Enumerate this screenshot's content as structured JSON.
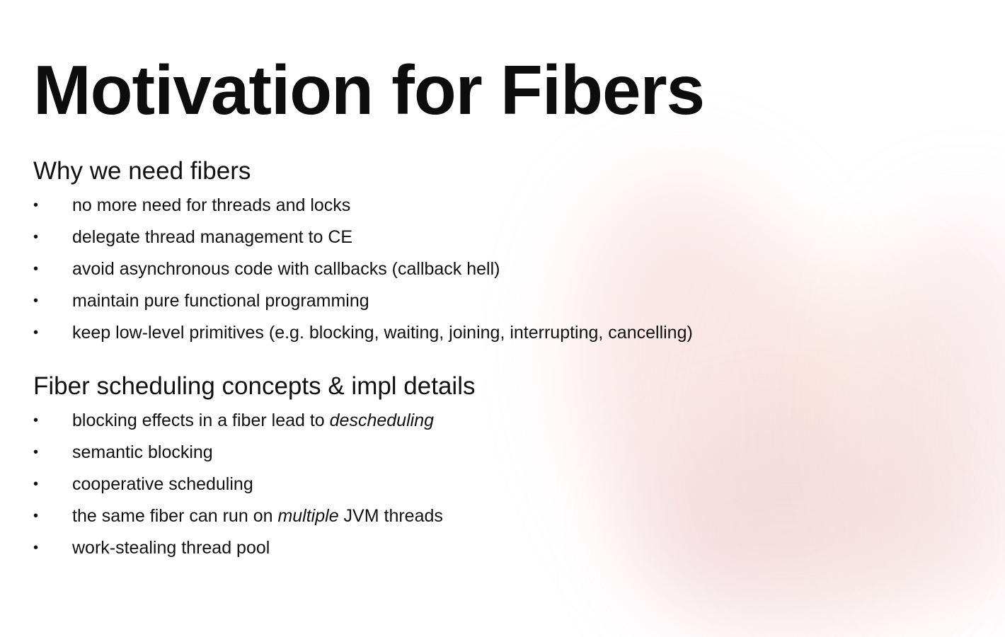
{
  "slide": {
    "title": "Motivation for Fibers",
    "sections": [
      {
        "heading": "Why we need fibers",
        "items": [
          {
            "text": "no more need for threads and locks"
          },
          {
            "text": "delegate thread management to CE"
          },
          {
            "text": "avoid asynchronous code with callbacks (callback hell)"
          },
          {
            "text": "maintain pure functional programming"
          },
          {
            "text": "keep low-level primitives (e.g. blocking, waiting, joining, interrupting, cancelling)"
          }
        ]
      },
      {
        "heading": "Fiber scheduling concepts & impl details",
        "items": [
          {
            "before": "blocking effects in a fiber lead to ",
            "emphasis": "descheduling",
            "after": ""
          },
          {
            "text": "semantic blocking"
          },
          {
            "text": "cooperative scheduling"
          },
          {
            "before": "the same fiber can run on ",
            "emphasis": "multiple",
            "after": " JVM threads"
          },
          {
            "text": "work-stealing thread pool"
          }
        ]
      }
    ],
    "bullet_glyph": "•"
  }
}
